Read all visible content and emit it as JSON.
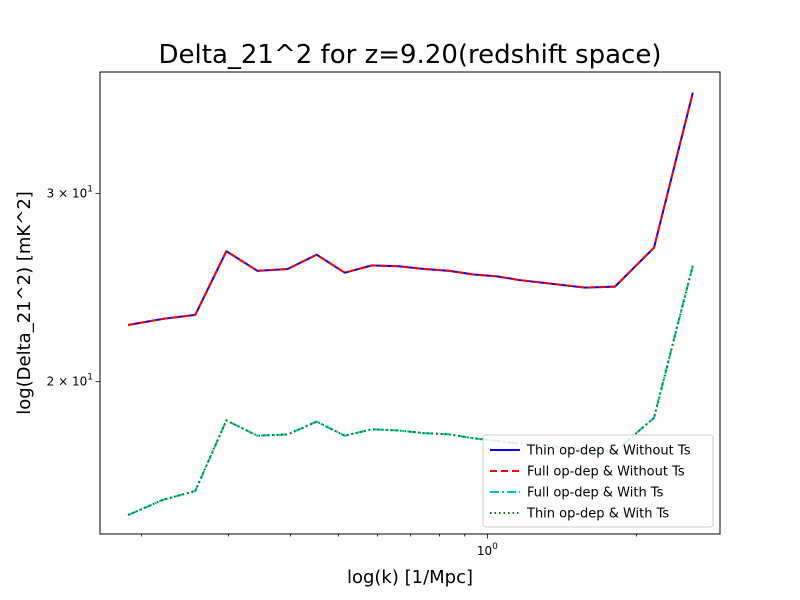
{
  "chart_data": {
    "type": "line",
    "title": "Delta_21^2 for z=9.20(redshift space)",
    "xlabel": "log(k) [1/Mpc]",
    "ylabel": "log(Delta_21^2) [mK^2]",
    "xscale": "log",
    "yscale": "log",
    "xlim": [
      0.165,
      2.95
    ],
    "ylim": [
      14.4,
      39.0
    ],
    "x_major_ticks": [
      {
        "value": 1,
        "label": "10^0"
      }
    ],
    "x_minor_ticks": [
      0.2,
      0.3,
      0.4,
      0.5,
      0.6,
      0.7,
      0.8,
      0.9,
      2
    ],
    "y_major_ticks": [
      {
        "value": 20,
        "label": "2 × 10^1"
      },
      {
        "value": 30,
        "label": "3 × 10^1"
      }
    ],
    "grid": false,
    "legend_position": "lower-right",
    "x": [
      0.188,
      0.221,
      0.257,
      0.297,
      0.343,
      0.395,
      0.452,
      0.515,
      0.585,
      0.662,
      0.746,
      0.838,
      0.938,
      1.046,
      1.16,
      1.575,
      1.81,
      2.17,
      2.6
    ],
    "series": [
      {
        "name": "Thin op-dep & Without Ts",
        "color": "#0000ff",
        "dash": "solid",
        "values": [
          22.6,
          22.9,
          23.1,
          26.5,
          25.4,
          25.5,
          26.3,
          25.3,
          25.7,
          25.65,
          25.5,
          25.4,
          25.2,
          25.1,
          24.9,
          24.5,
          24.55,
          26.7,
          37.3
        ]
      },
      {
        "name": "Full op-dep & Without Ts",
        "color": "#ff0000",
        "dash": "dashed",
        "values": [
          22.6,
          22.9,
          23.1,
          26.5,
          25.4,
          25.5,
          26.3,
          25.3,
          25.7,
          25.65,
          25.5,
          25.4,
          25.2,
          25.1,
          24.9,
          24.5,
          24.55,
          26.7,
          37.3
        ]
      },
      {
        "name": "Full op-dep & With Ts",
        "color": "#00bfbf",
        "dash": "dashdot",
        "values": [
          15.0,
          15.5,
          15.8,
          18.4,
          17.8,
          17.85,
          18.35,
          17.8,
          18.05,
          18.0,
          17.9,
          17.85,
          17.7,
          17.6,
          17.5,
          17.3,
          17.2,
          18.5,
          25.7
        ]
      },
      {
        "name": "Thin op-dep & With Ts",
        "color": "#008000",
        "dash": "dotted",
        "values": [
          15.0,
          15.5,
          15.8,
          18.4,
          17.8,
          17.85,
          18.35,
          17.8,
          18.05,
          18.0,
          17.9,
          17.85,
          17.7,
          17.6,
          17.5,
          17.3,
          17.2,
          18.5,
          25.7
        ]
      }
    ]
  }
}
